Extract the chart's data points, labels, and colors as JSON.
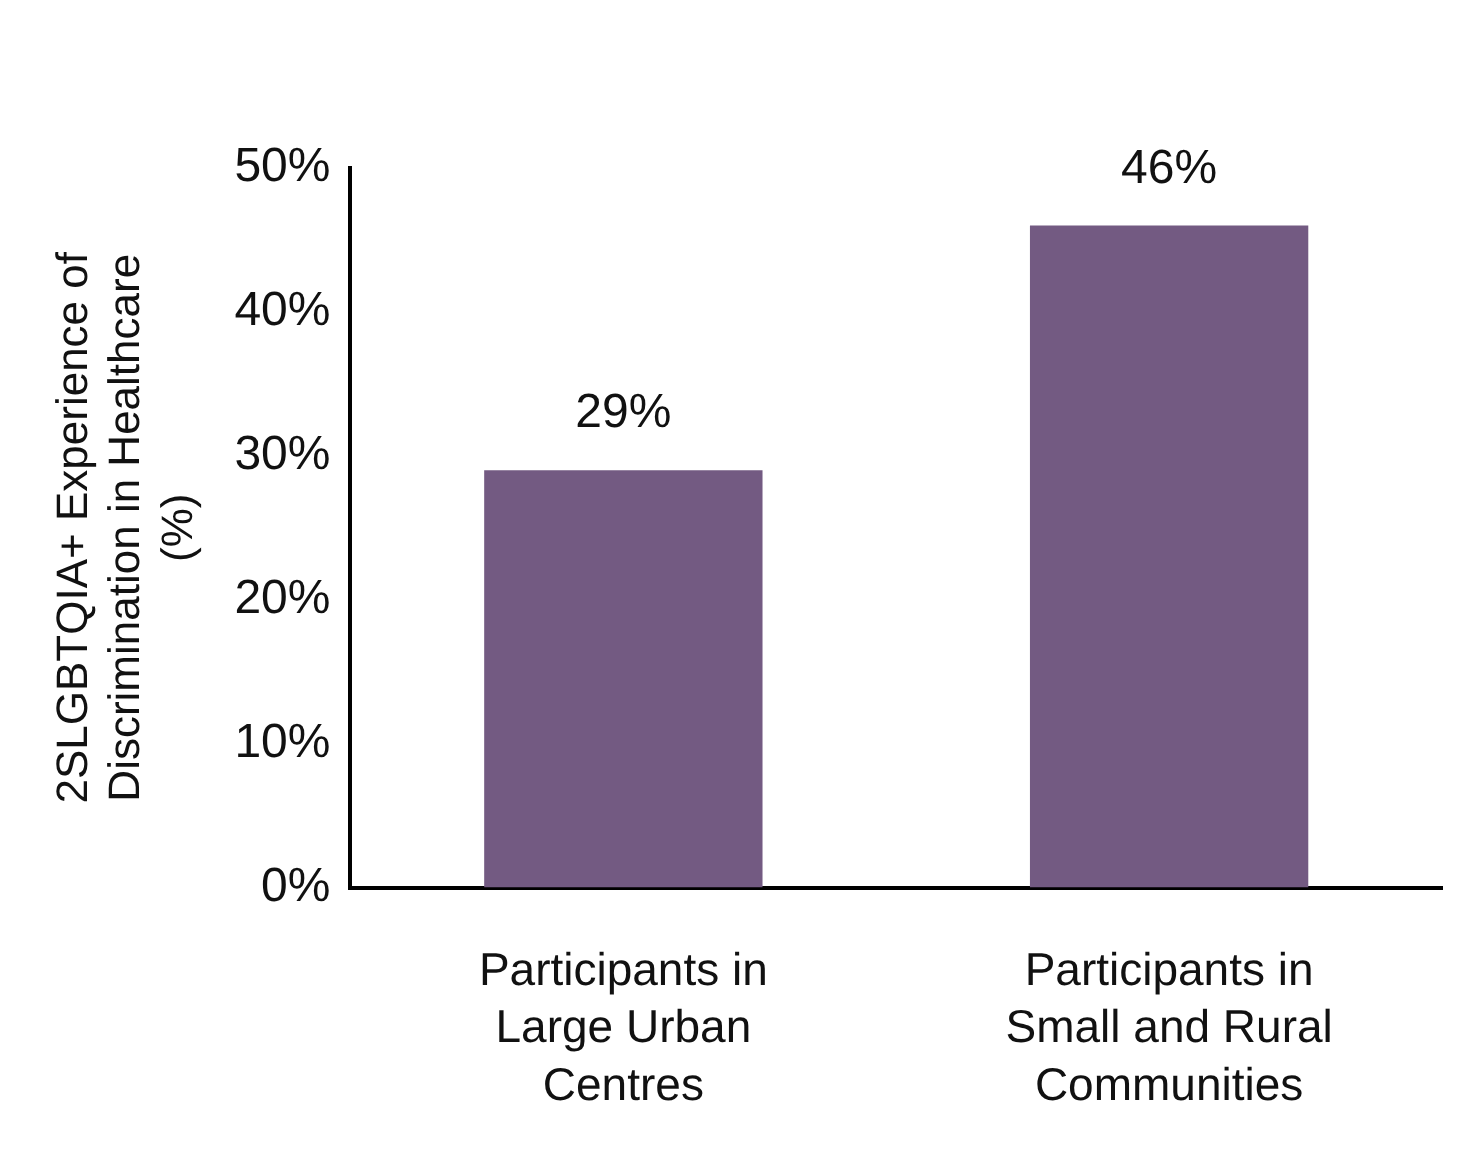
{
  "chart_data": {
    "type": "bar",
    "ylabel": "2SLGBTQIA+ Experience of Discrimination in Healthcare (%)",
    "categories": [
      "Participants in Large Urban Centres",
      "Participants in Small and Rural Communities"
    ],
    "values": [
      29,
      46
    ],
    "colors": [
      "#735a82",
      "#735a82"
    ],
    "value_labels": [
      "29%",
      "46%"
    ],
    "ylim": [
      0,
      50
    ],
    "yticks": [
      {
        "value": 0,
        "label": "0%"
      },
      {
        "value": 10,
        "label": "10%"
      },
      {
        "value": 20,
        "label": "20%"
      },
      {
        "value": 30,
        "label": "30%"
      },
      {
        "value": 40,
        "label": "40%"
      },
      {
        "value": 50,
        "label": "50%"
      }
    ],
    "grid": false,
    "legend": false
  }
}
